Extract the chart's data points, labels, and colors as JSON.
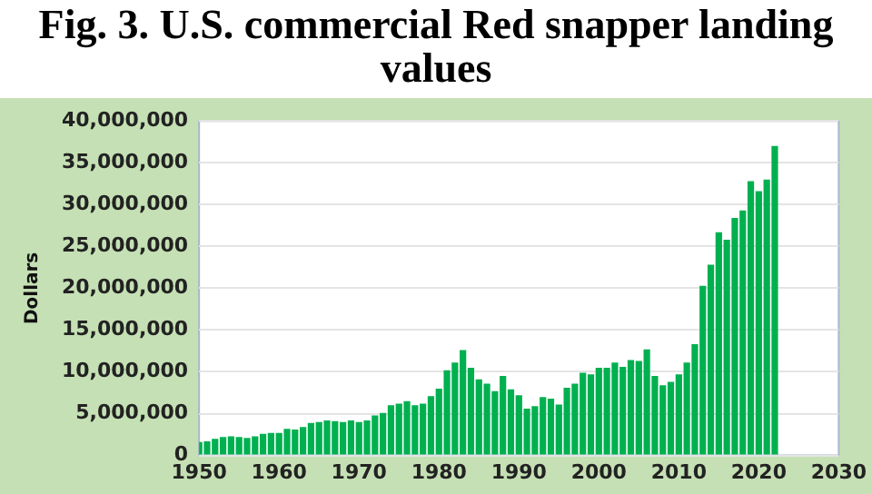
{
  "chart_data": {
    "type": "bar",
    "title": "Fig. 3. U.S. commercial Red snapper landing values",
    "ylabel": "Dollars",
    "x": [
      1950,
      1951,
      1952,
      1953,
      1954,
      1955,
      1956,
      1957,
      1958,
      1959,
      1960,
      1961,
      1962,
      1963,
      1964,
      1965,
      1966,
      1967,
      1968,
      1969,
      1970,
      1971,
      1972,
      1973,
      1974,
      1975,
      1976,
      1977,
      1978,
      1979,
      1980,
      1981,
      1982,
      1983,
      1984,
      1985,
      1986,
      1987,
      1988,
      1989,
      1990,
      1991,
      1992,
      1993,
      1994,
      1995,
      1996,
      1997,
      1998,
      1999,
      2000,
      2001,
      2002,
      2003,
      2004,
      2005,
      2006,
      2007,
      2008,
      2009,
      2010,
      2011,
      2012,
      2013,
      2014,
      2015,
      2016,
      2017,
      2018,
      2019,
      2020,
      2021,
      2022
    ],
    "values": [
      1600000,
      1700000,
      2000000,
      2200000,
      2300000,
      2200000,
      2100000,
      2300000,
      2600000,
      2700000,
      2700000,
      3200000,
      3100000,
      3400000,
      3900000,
      4000000,
      4200000,
      4100000,
      4000000,
      4200000,
      4000000,
      4200000,
      4800000,
      5100000,
      6000000,
      6200000,
      6500000,
      6000000,
      6200000,
      7100000,
      8000000,
      10200000,
      11100000,
      12600000,
      10500000,
      9100000,
      8600000,
      7700000,
      9500000,
      7900000,
      7200000,
      5600000,
      5900000,
      7000000,
      6800000,
      6100000,
      8100000,
      8600000,
      9900000,
      9700000,
      10500000,
      10500000,
      11100000,
      10600000,
      11400000,
      11300000,
      12700000,
      9500000,
      8400000,
      8800000,
      9700000,
      11100000,
      13300000,
      20300000,
      22800000,
      26700000,
      25800000,
      28400000,
      29300000,
      32800000,
      31600000,
      33000000,
      37000000
    ],
    "color": "#00b050",
    "xlim": [
      1950,
      2030
    ],
    "xticks": [
      1950,
      1960,
      1970,
      1980,
      1990,
      2000,
      2010,
      2020,
      2030
    ],
    "ylim": [
      0,
      40000000
    ],
    "yticks": [
      0,
      {
        "value": 5000000,
        "label": "5,000,000"
      },
      {
        "value": 10000000,
        "label": "10,000,000"
      },
      {
        "value": 15000000,
        "label": "15,000,000"
      },
      {
        "value": 20000000,
        "label": "20,000,000"
      },
      {
        "value": 25000000,
        "label": "25,000,000"
      },
      {
        "value": 30000000,
        "label": "30,000,000"
      },
      {
        "value": 35000000,
        "label": "35,000,000"
      },
      {
        "value": 40000000,
        "label": "40,000,000"
      }
    ],
    "grid": "y",
    "legend": false
  }
}
